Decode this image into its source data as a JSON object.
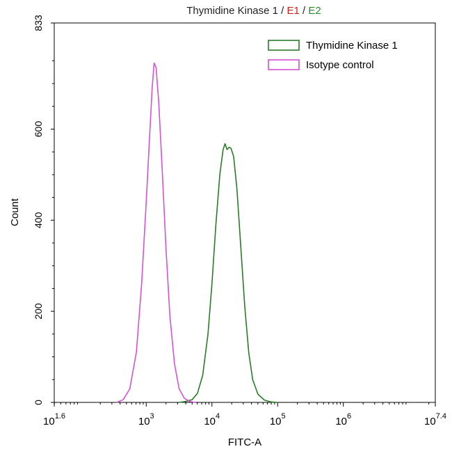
{
  "chart_data": {
    "type": "line",
    "title_parts": [
      {
        "text": "Thymidine Kinase 1 / ",
        "color": "#222222"
      },
      {
        "text": "E1",
        "color": "#cc2222"
      },
      {
        "text": " / ",
        "color": "#222222"
      },
      {
        "text": "E2",
        "color": "#2a8a2a"
      }
    ],
    "xlabel": "FITC-A",
    "ylabel": "Count",
    "x_scale": "log10",
    "xlim_log10": [
      1.6,
      7.4
    ],
    "ylim": [
      0,
      833
    ],
    "x_ticks": [
      {
        "log10": 1.6,
        "base": "10",
        "exp": "1.6"
      },
      {
        "log10": 3,
        "base": "10",
        "exp": "3"
      },
      {
        "log10": 4,
        "base": "10",
        "exp": "4"
      },
      {
        "log10": 5,
        "base": "10",
        "exp": "5"
      },
      {
        "log10": 6,
        "base": "10",
        "exp": "6"
      },
      {
        "log10": 7.4,
        "base": "10",
        "exp": "7.4"
      }
    ],
    "y_ticks": [
      {
        "value": 0,
        "label": "0"
      },
      {
        "value": 200,
        "label": "200"
      },
      {
        "value": 400,
        "label": "400"
      },
      {
        "value": 600,
        "label": "600"
      },
      {
        "value": 833,
        "label": "833"
      }
    ],
    "grid": false,
    "legend_position": "top-right",
    "series": [
      {
        "name": "Thymidine Kinase 1",
        "color": "#2a7a2a",
        "points": [
          [
            3.5,
            0
          ],
          [
            3.6,
            2
          ],
          [
            3.7,
            6
          ],
          [
            3.78,
            20
          ],
          [
            3.86,
            60
          ],
          [
            3.94,
            150
          ],
          [
            4.0,
            260
          ],
          [
            4.06,
            390
          ],
          [
            4.12,
            500
          ],
          [
            4.17,
            555
          ],
          [
            4.2,
            568
          ],
          [
            4.23,
            555
          ],
          [
            4.26,
            560
          ],
          [
            4.29,
            558
          ],
          [
            4.33,
            540
          ],
          [
            4.38,
            470
          ],
          [
            4.44,
            340
          ],
          [
            4.5,
            210
          ],
          [
            4.56,
            110
          ],
          [
            4.62,
            50
          ],
          [
            4.7,
            18
          ],
          [
            4.8,
            5
          ],
          [
            4.9,
            1
          ],
          [
            5.0,
            0
          ]
        ]
      },
      {
        "name": "Isotype control",
        "color": "#d452d4",
        "points": [
          [
            2.55,
            0
          ],
          [
            2.65,
            6
          ],
          [
            2.75,
            30
          ],
          [
            2.85,
            110
          ],
          [
            2.93,
            260
          ],
          [
            3.0,
            440
          ],
          [
            3.05,
            580
          ],
          [
            3.09,
            690
          ],
          [
            3.12,
            745
          ],
          [
            3.15,
            735
          ],
          [
            3.19,
            660
          ],
          [
            3.24,
            520
          ],
          [
            3.3,
            340
          ],
          [
            3.36,
            190
          ],
          [
            3.43,
            85
          ],
          [
            3.5,
            30
          ],
          [
            3.58,
            9
          ],
          [
            3.66,
            2
          ],
          [
            3.75,
            0
          ]
        ]
      }
    ]
  }
}
